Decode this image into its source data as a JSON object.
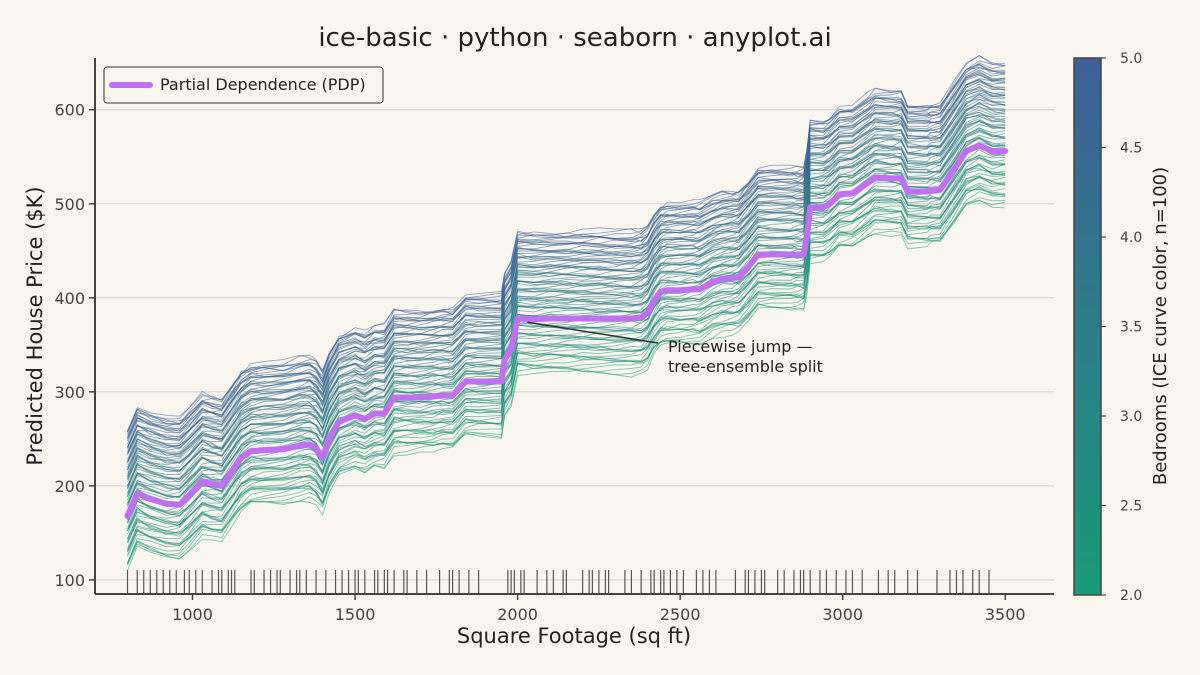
{
  "chart_data": {
    "type": "line",
    "title": "ice-basic · python · seaborn · anyplot.ai",
    "xlabel": "Square Footage (sq ft)",
    "ylabel": "Predicted House Price ($K)",
    "xlim": [
      700,
      3650
    ],
    "ylim": [
      85,
      655
    ],
    "xticks": [
      1000,
      1500,
      2000,
      2500,
      3000,
      3500
    ],
    "yticks": [
      100,
      200,
      300,
      400,
      500,
      600
    ],
    "grid": "horizontal",
    "legend_position": "top-left",
    "colors": {
      "pdp": "#c070f0",
      "ice_low": "#1a9a78",
      "ice_high": "#3f5f98",
      "rug": "#555555",
      "axis": "#444444",
      "grid": "#d9d6d0",
      "background": "#f9f6f0"
    },
    "pdp": {
      "name": "Partial Dependence (PDP)",
      "x": [
        800,
        830,
        870,
        920,
        960,
        990,
        1030,
        1060,
        1090,
        1130,
        1150,
        1180,
        1220,
        1280,
        1330,
        1360,
        1380,
        1400,
        1420,
        1450,
        1500,
        1530,
        1560,
        1590,
        1620,
        1660,
        1700,
        1740,
        1770,
        1800,
        1840,
        1880,
        1950,
        1960,
        1980,
        2000,
        2050,
        2100,
        2150,
        2200,
        2250,
        2300,
        2350,
        2380,
        2400,
        2420,
        2440,
        2460,
        2500,
        2540,
        2560,
        2600,
        2630,
        2660,
        2680,
        2710,
        2740,
        2780,
        2840,
        2860,
        2880,
        2890,
        2900,
        2940,
        2960,
        2990,
        3030,
        3080,
        3100,
        3150,
        3180,
        3200,
        3260,
        3270,
        3300,
        3340,
        3380,
        3420,
        3460,
        3500
      ],
      "y": [
        168,
        192,
        186,
        181,
        180,
        190,
        205,
        202,
        200,
        220,
        230,
        237,
        238,
        239,
        243,
        244,
        240,
        230,
        250,
        268,
        275,
        271,
        277,
        277,
        294,
        294,
        294,
        295,
        296,
        296,
        311,
        311,
        311,
        334,
        345,
        378,
        377,
        378,
        378,
        378,
        378,
        378,
        378,
        379,
        384,
        397,
        406,
        408,
        408,
        409,
        409,
        417,
        420,
        421,
        422,
        433,
        446,
        446,
        446,
        446,
        446,
        465,
        496,
        496,
        500,
        510,
        511,
        523,
        528,
        527,
        527,
        513,
        513,
        514,
        515,
        535,
        556,
        562,
        556,
        556
      ]
    },
    "ice": {
      "count": 100,
      "spread_min": -58,
      "spread_max": 92
    },
    "colorbar": {
      "label": "Bedrooms (ICE curve color, n=100)",
      "min": 2.0,
      "max": 5.0,
      "ticks": [
        "2.0",
        "2.5",
        "3.0",
        "3.5",
        "4.0",
        "4.5",
        "5.0"
      ]
    },
    "rug": [
      800,
      830,
      850,
      870,
      890,
      910,
      930,
      950,
      975,
      990,
      1010,
      1030,
      1060,
      1080,
      1090,
      1110,
      1120,
      1130,
      1180,
      1190,
      1220,
      1240,
      1260,
      1270,
      1300,
      1320,
      1330,
      1350,
      1380,
      1410,
      1440,
      1460,
      1480,
      1500,
      1510,
      1530,
      1560,
      1570,
      1590,
      1600,
      1620,
      1650,
      1660,
      1690,
      1720,
      1760,
      1790,
      1800,
      1820,
      1850,
      1880,
      1970,
      1980,
      1990,
      2010,
      2020,
      2060,
      2090,
      2110,
      2140,
      2150,
      2200,
      2220,
      2230,
      2250,
      2270,
      2280,
      2330,
      2350,
      2380,
      2410,
      2420,
      2440,
      2450,
      2470,
      2490,
      2510,
      2550,
      2570,
      2590,
      2610,
      2670,
      2700,
      2710,
      2730,
      2750,
      2760,
      2800,
      2820,
      2850,
      2870,
      2880,
      2900,
      2930,
      2950,
      2980,
      3010,
      3030,
      3060,
      3110,
      3140,
      3160,
      3200,
      3230,
      3290,
      3330,
      3350,
      3370,
      3400,
      3420,
      3450
    ]
  },
  "annotation": {
    "line1": "Piecewise jump —",
    "line2": "tree-ensemble split",
    "x": 2030,
    "y": 374
  }
}
